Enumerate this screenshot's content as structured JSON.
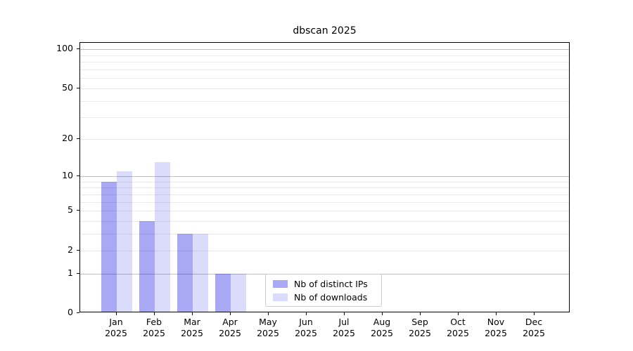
{
  "chart_data": {
    "type": "bar",
    "title": "dbscan 2025",
    "categories": [
      "Jan",
      "Feb",
      "Mar",
      "Apr",
      "May",
      "Jun",
      "Jul",
      "Aug",
      "Sep",
      "Oct",
      "Nov",
      "Dec"
    ],
    "x_year_label": "2025",
    "series": [
      {
        "name": "Nb of distinct IPs",
        "color": "rgba(0,0,224,0.34)",
        "values": [
          9,
          4,
          3,
          1,
          0,
          0,
          0,
          0,
          0,
          0,
          0,
          0
        ]
      },
      {
        "name": "Nb of downloads",
        "color": "rgba(0,0,224,0.14)",
        "values": [
          11,
          13,
          3,
          1,
          0,
          0,
          0,
          0,
          0,
          0,
          0,
          0
        ]
      }
    ],
    "y_ticks": [
      0,
      1,
      2,
      5,
      10,
      20,
      50,
      100
    ],
    "y_gridlines_major": [
      1,
      10,
      100
    ],
    "y_gridlines_minor": [
      2,
      3,
      4,
      5,
      6,
      7,
      8,
      9,
      20,
      30,
      40,
      50,
      60,
      70,
      80,
      90
    ],
    "scale": "log10(1+x)",
    "ylim": [
      0,
      112
    ],
    "xlabel": "",
    "ylabel": "",
    "grid": true,
    "legend_position": "inside-bottom-center",
    "colors": {
      "axis": "#000000",
      "grid_major": "#c0c0c0",
      "grid_minor": "#e9e9e9",
      "background": "#ffffff",
      "legend_border": "#cccccc"
    }
  }
}
